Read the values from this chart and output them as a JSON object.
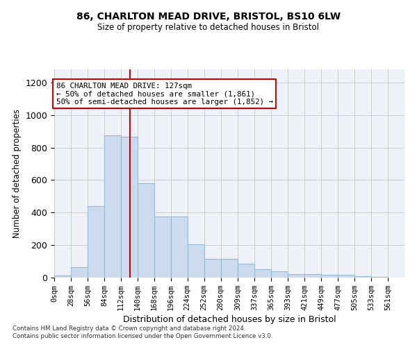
{
  "title_line1": "86, CHARLTON MEAD DRIVE, BRISTOL, BS10 6LW",
  "title_line2": "Size of property relative to detached houses in Bristol",
  "xlabel": "Distribution of detached houses by size in Bristol",
  "ylabel": "Number of detached properties",
  "bar_values": [
    12,
    65,
    440,
    875,
    865,
    580,
    375,
    375,
    205,
    115,
    115,
    85,
    50,
    40,
    20,
    20,
    18,
    15,
    10,
    5,
    2
  ],
  "bin_edges": [
    0,
    28,
    56,
    84,
    112,
    140,
    168,
    196,
    224,
    252,
    280,
    309,
    337,
    365,
    393,
    421,
    449,
    477,
    505,
    533,
    561,
    589
  ],
  "bar_color": "#ccdcee",
  "bar_edge_color": "#9ab8d0",
  "vline_x": 127,
  "vline_color": "#cc0000",
  "annotation_text": "86 CHARLTON MEAD DRIVE: 127sqm\n← 50% of detached houses are smaller (1,861)\n50% of semi-detached houses are larger (1,852) →",
  "annotation_box_color": "#ffffff",
  "annotation_box_edge": "#cc0000",
  "ylim": [
    0,
    1280
  ],
  "yticks": [
    0,
    200,
    400,
    600,
    800,
    1000,
    1200
  ],
  "grid_color": "#cccccc",
  "bg_color": "#eef2f8",
  "footer_line1": "Contains HM Land Registry data © Crown copyright and database right 2024.",
  "footer_line2": "Contains public sector information licensed under the Open Government Licence v3.0.",
  "tick_labels": [
    "0sqm",
    "28sqm",
    "56sqm",
    "84sqm",
    "112sqm",
    "140sqm",
    "168sqm",
    "196sqm",
    "224sqm",
    "252sqm",
    "280sqm",
    "309sqm",
    "337sqm",
    "365sqm",
    "393sqm",
    "421sqm",
    "449sqm",
    "477sqm",
    "505sqm",
    "533sqm",
    "561sqm"
  ]
}
